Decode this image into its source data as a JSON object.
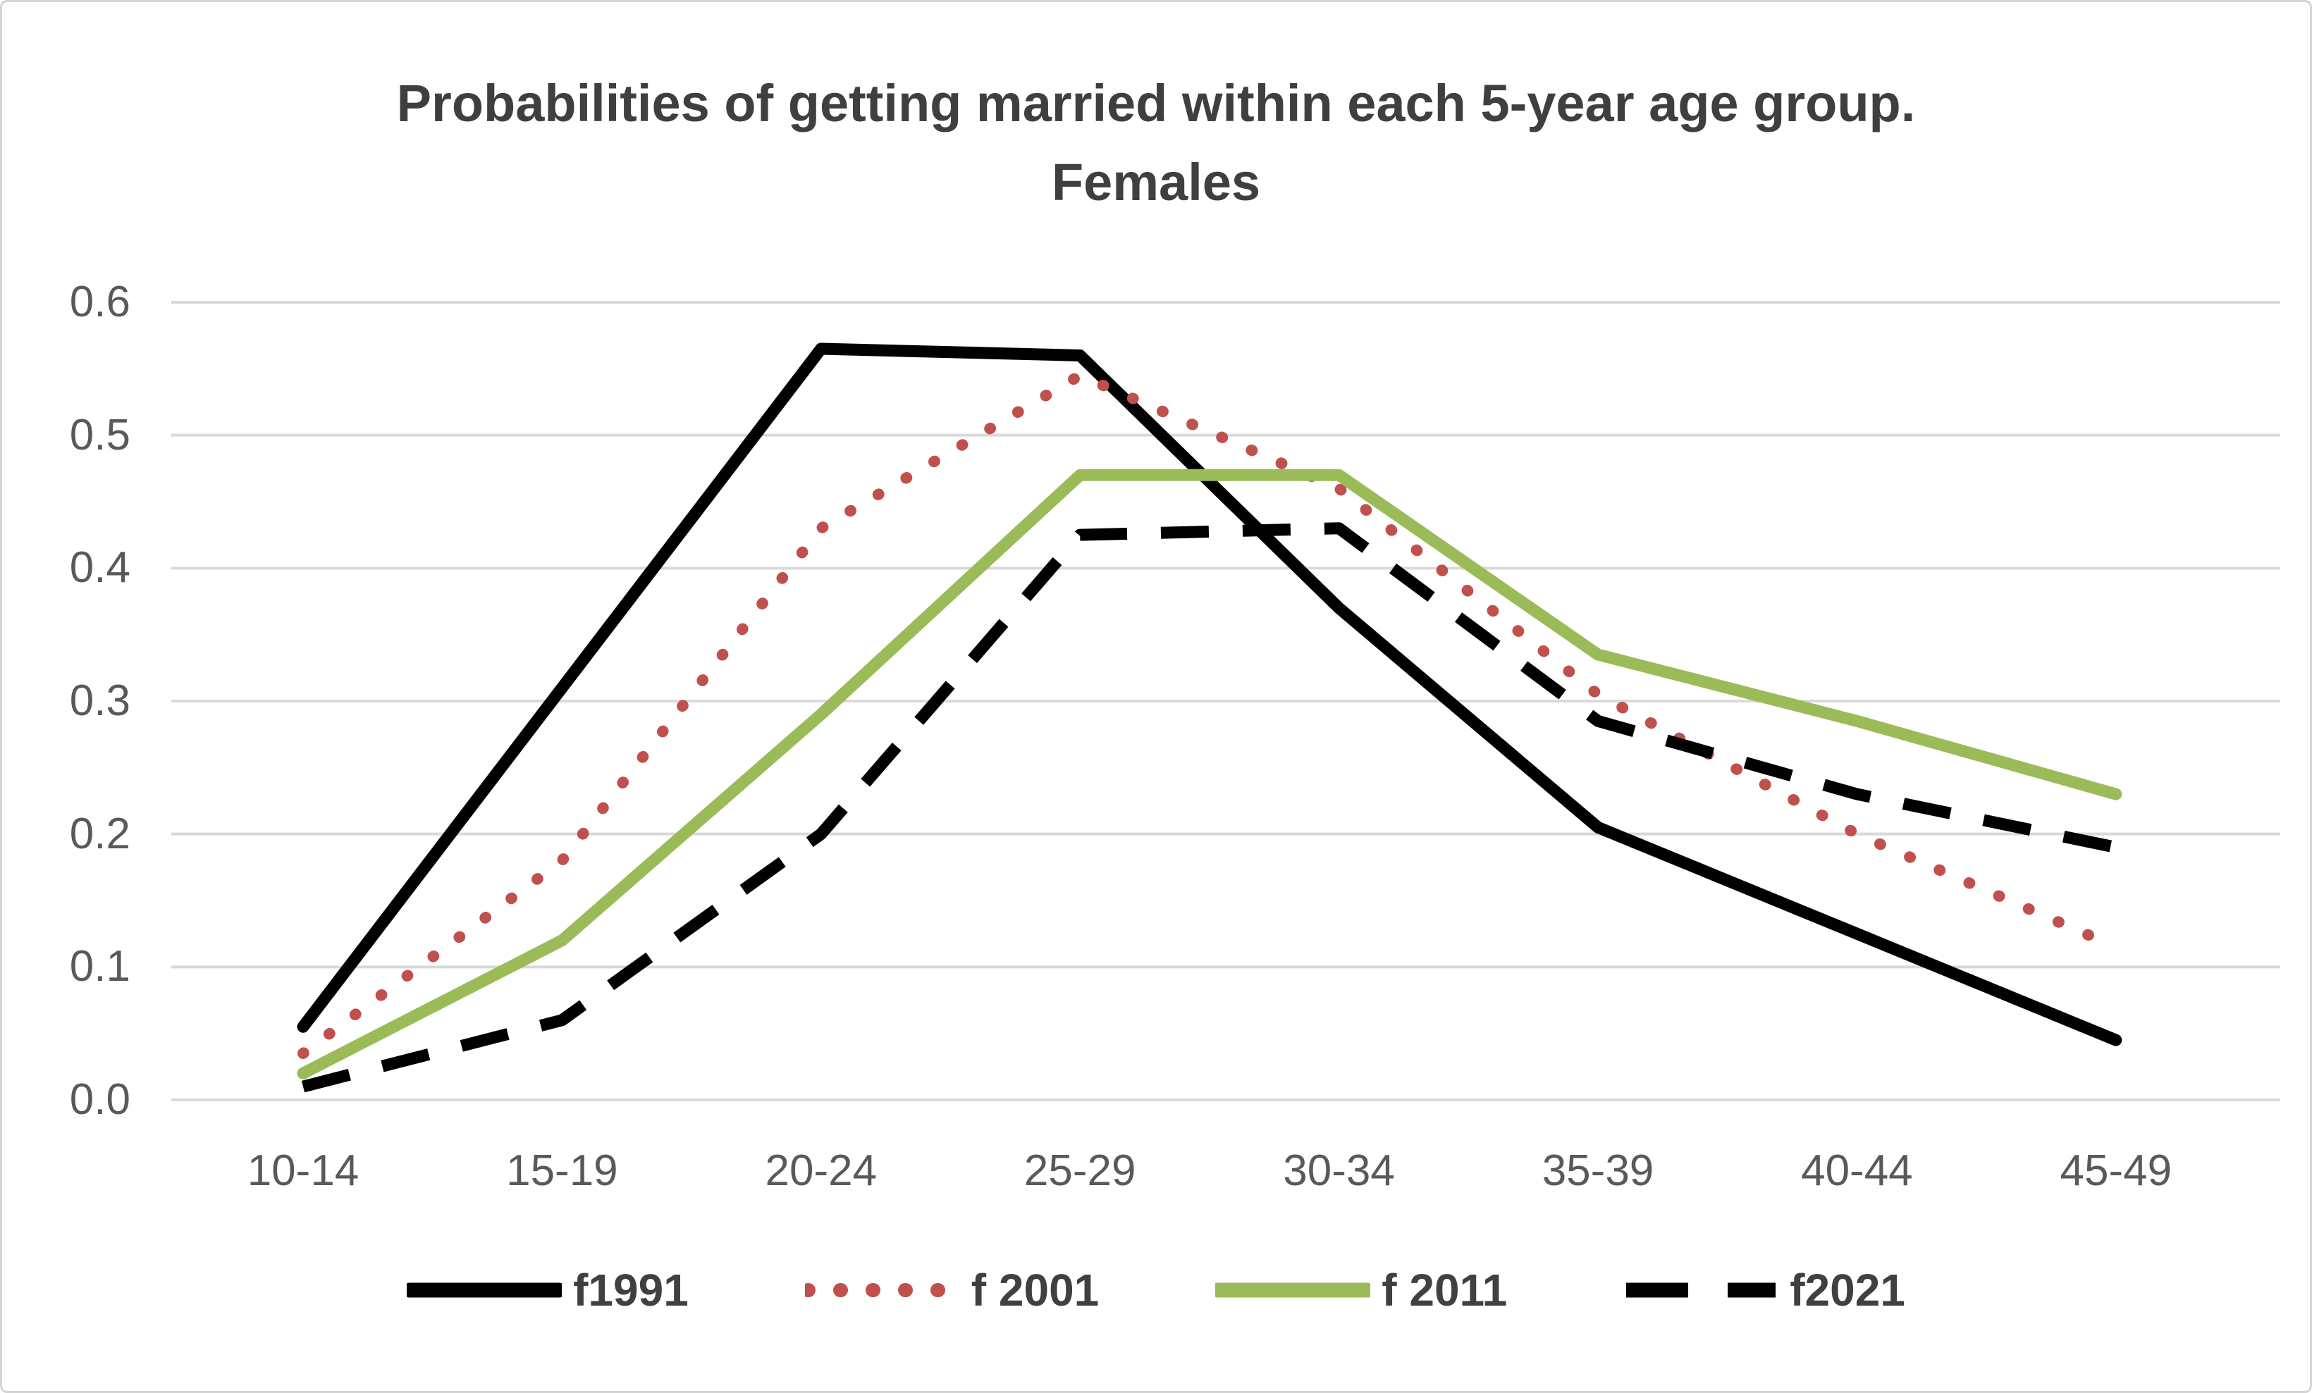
{
  "title": {
    "line1": "Probabilities of getting married within each 5-year age group.",
    "line2": "Females"
  },
  "colors": {
    "title_text": "#3f3f3f",
    "axis_text": "#595959",
    "gridline": "#d9d9d9",
    "canvas_border": "#d4d4d4",
    "series_black": "#000000",
    "series_red": "#c0504d",
    "series_green": "#9bbb59"
  },
  "chart_data": {
    "type": "line",
    "title": "Probabilities of getting married within each 5-year age group. Females",
    "categories": [
      "10-14",
      "15-19",
      "20-24",
      "25-29",
      "30-34",
      "35-39",
      "40-44",
      "45-49"
    ],
    "series": [
      {
        "name": "f1991",
        "values": [
          0.055,
          0.31,
          0.565,
          0.56,
          0.37,
          0.205,
          0.125,
          0.045
        ],
        "color": "#000000",
        "style": "solid"
      },
      {
        "name": "f 2001",
        "values": [
          0.035,
          0.18,
          0.43,
          0.545,
          0.46,
          0.305,
          0.2,
          0.115
        ],
        "color": "#c0504d",
        "style": "dotted"
      },
      {
        "name": "f 2011",
        "values": [
          0.02,
          0.12,
          0.29,
          0.47,
          0.47,
          0.335,
          0.285,
          0.23
        ],
        "color": "#9bbb59",
        "style": "solid"
      },
      {
        "name": "f2021",
        "values": [
          0.01,
          0.06,
          0.2,
          0.425,
          0.43,
          0.285,
          0.23,
          0.19
        ],
        "color": "#000000",
        "style": "dashed"
      }
    ],
    "xlabel": "",
    "ylabel": "",
    "ylim": [
      0.0,
      0.6
    ],
    "yticks": [
      "0.0",
      "0.1",
      "0.2",
      "0.3",
      "0.4",
      "0.5",
      "0.6"
    ],
    "grid": "horizontal",
    "legend_position": "bottom"
  }
}
